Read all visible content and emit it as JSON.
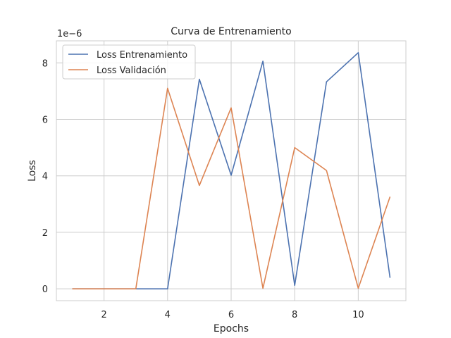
{
  "chart_data": {
    "type": "line",
    "title": "Curva de Entrenamiento",
    "xlabel": "Epochs",
    "ylabel": "Loss",
    "y_offset_text": "1e−6",
    "x": [
      1,
      2,
      3,
      4,
      5,
      6,
      7,
      8,
      9,
      10,
      11
    ],
    "xlim": [
      0.5,
      11.5
    ],
    "ylim": [
      -0.42,
      8.78
    ],
    "x_ticks": [
      2,
      4,
      6,
      8,
      10
    ],
    "x_tick_labels": [
      "2",
      "4",
      "6",
      "8",
      "10"
    ],
    "y_ticks": [
      0,
      2,
      4,
      6,
      8
    ],
    "y_tick_labels": [
      "0",
      "2",
      "4",
      "6",
      "8"
    ],
    "grid": true,
    "legend_position": "top-left",
    "series": [
      {
        "name": "Loss Entrenamiento",
        "color": "#4c72b0",
        "values": [
          0,
          0,
          0,
          0,
          7.42,
          4.02,
          8.06,
          0.12,
          7.33,
          8.36,
          0.39
        ]
      },
      {
        "name": "Loss Validación",
        "color": "#dd8452",
        "values": [
          0,
          0,
          0,
          7.1,
          3.66,
          6.41,
          0.02,
          5.0,
          4.19,
          0.02,
          3.26
        ]
      }
    ]
  }
}
